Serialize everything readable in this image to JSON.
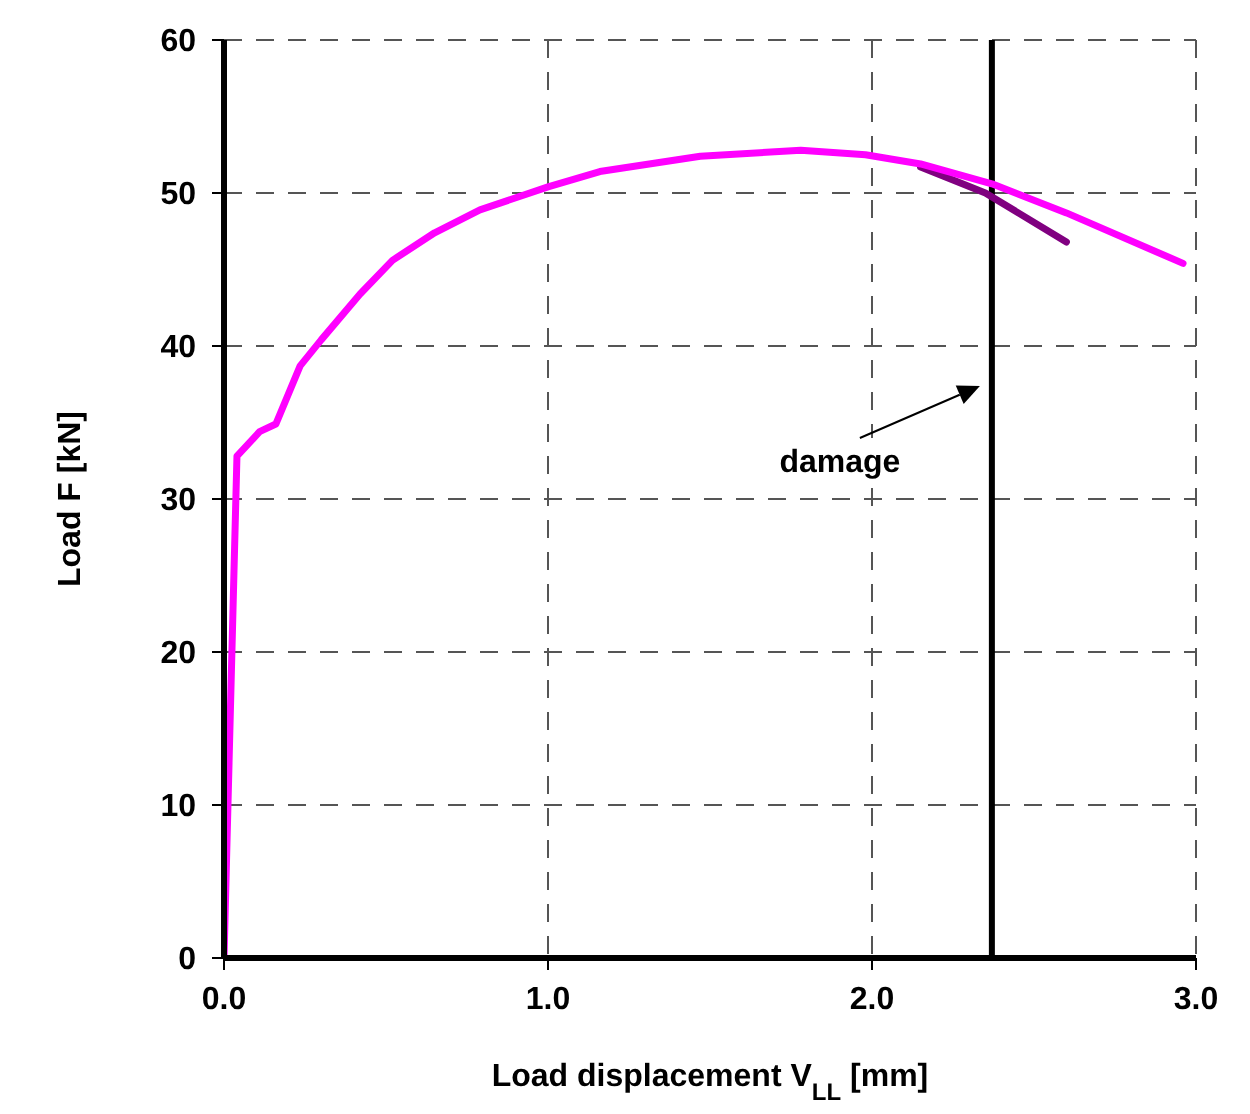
{
  "chart_data": {
    "type": "line",
    "xlabel": "Load displacement V$_{LL}$ [mm]",
    "ylabel": "Load F [kN]",
    "xlim": [
      0,
      3
    ],
    "xticks": [
      {
        "value": 0,
        "label": "0.0"
      },
      {
        "value": 1,
        "label": "1.0"
      },
      {
        "value": 2,
        "label": "2.0"
      },
      {
        "value": 3,
        "label": "3.0"
      }
    ],
    "ylim": [
      0,
      60
    ],
    "yticks": [
      0,
      10,
      20,
      30,
      40,
      50,
      60
    ],
    "grid": true,
    "legend": false,
    "marker": "none",
    "line_style": "solid",
    "series": [
      {
        "color": "#800080",
        "x": [
          2.15,
          2.35,
          2.6
        ],
        "values": [
          51.7,
          50.0,
          46.8
        ]
      },
      {
        "color": "#ff00ff",
        "x": [
          0,
          0.04,
          0.11,
          0.16,
          0.235,
          0.3,
          0.42,
          0.52,
          0.65,
          0.79,
          1.0,
          1.16,
          1.47,
          1.78,
          1.98,
          2.15,
          2.37,
          2.6,
          2.96
        ],
        "values": [
          0,
          32.8,
          34.4,
          34.9,
          38.7,
          40.4,
          43.4,
          45.6,
          47.4,
          48.9,
          50.4,
          51.4,
          52.4,
          52.8,
          52.5,
          51.9,
          50.6,
          48.7,
          45.4
        ]
      }
    ],
    "ref_lines": [
      {
        "axis": "x",
        "value": 2.37,
        "color": "#000000",
        "line_style": "solid"
      }
    ],
    "annotations": [
      "damage"
    ]
  }
}
